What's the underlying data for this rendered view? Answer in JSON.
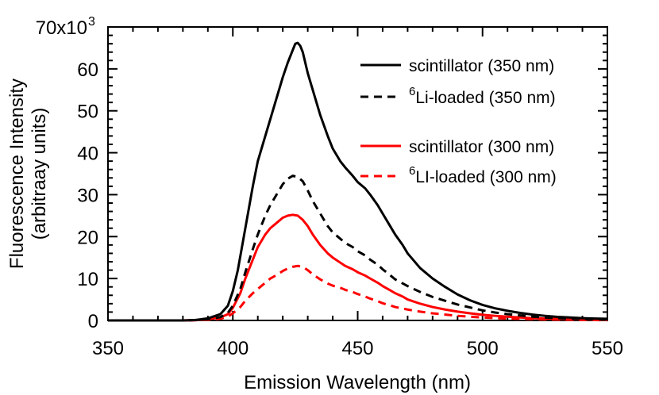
{
  "chart_data": {
    "type": "line",
    "title": "",
    "xlabel": "Emission Wavelength (nm)",
    "ylabel_line1": "Fluorescence Intensity",
    "ylabel_line2": "(arbitraay units)",
    "xlim": [
      350,
      550
    ],
    "ylim": [
      0,
      70000
    ],
    "x_ticks": [
      350,
      400,
      450,
      500,
      550
    ],
    "x_tick_labels": [
      "350",
      "400",
      "450",
      "500",
      "550"
    ],
    "y_ticks": [
      0,
      10000,
      20000,
      30000,
      40000,
      50000,
      60000,
      70000
    ],
    "y_tick_labels": [
      "0",
      "10",
      "20",
      "30",
      "40",
      "50",
      "60",
      "70x10"
    ],
    "y_tick_exponent": "3",
    "grid": false,
    "legend_position": "top-right",
    "series": [
      {
        "name": "scintillator (350 nm)",
        "color": "#000000",
        "dash": "solid",
        "points": [
          [
            350,
            0
          ],
          [
            360,
            0
          ],
          [
            370,
            0
          ],
          [
            380,
            0
          ],
          [
            385,
            100
          ],
          [
            390,
            500
          ],
          [
            395,
            1500
          ],
          [
            398,
            3500
          ],
          [
            400,
            7000
          ],
          [
            402,
            12000
          ],
          [
            405,
            22000
          ],
          [
            408,
            32000
          ],
          [
            410,
            38000
          ],
          [
            413,
            44000
          ],
          [
            415,
            48000
          ],
          [
            418,
            54000
          ],
          [
            420,
            58000
          ],
          [
            422,
            61500
          ],
          [
            424,
            64500
          ],
          [
            425,
            66000
          ],
          [
            426,
            66200
          ],
          [
            427,
            65500
          ],
          [
            428,
            64000
          ],
          [
            430,
            59000
          ],
          [
            432,
            55000
          ],
          [
            435,
            49000
          ],
          [
            438,
            44000
          ],
          [
            440,
            41000
          ],
          [
            443,
            38000
          ],
          [
            445,
            36500
          ],
          [
            448,
            34500
          ],
          [
            450,
            33000
          ],
          [
            453,
            31500
          ],
          [
            455,
            30000
          ],
          [
            458,
            27500
          ],
          [
            460,
            25500
          ],
          [
            463,
            22500
          ],
          [
            465,
            20500
          ],
          [
            468,
            18000
          ],
          [
            470,
            16000
          ],
          [
            475,
            12500
          ],
          [
            480,
            10000
          ],
          [
            485,
            8000
          ],
          [
            490,
            6200
          ],
          [
            495,
            4800
          ],
          [
            500,
            3700
          ],
          [
            505,
            2900
          ],
          [
            510,
            2300
          ],
          [
            515,
            1800
          ],
          [
            520,
            1400
          ],
          [
            525,
            1100
          ],
          [
            530,
            850
          ],
          [
            535,
            700
          ],
          [
            540,
            550
          ],
          [
            545,
            450
          ],
          [
            550,
            400
          ]
        ]
      },
      {
        "name": "6Li-loaded (350 nm)",
        "label_sup": "6",
        "label_rest": "Li-loaded (350 nm)",
        "color": "#000000",
        "dash": "dashed",
        "points": [
          [
            350,
            0
          ],
          [
            370,
            0
          ],
          [
            380,
            0
          ],
          [
            385,
            100
          ],
          [
            390,
            300
          ],
          [
            395,
            800
          ],
          [
            398,
            1800
          ],
          [
            400,
            3500
          ],
          [
            403,
            7500
          ],
          [
            405,
            11500
          ],
          [
            408,
            17000
          ],
          [
            410,
            20500
          ],
          [
            413,
            25000
          ],
          [
            415,
            27500
          ],
          [
            418,
            30500
          ],
          [
            420,
            32500
          ],
          [
            422,
            33800
          ],
          [
            424,
            34500
          ],
          [
            426,
            34200
          ],
          [
            428,
            33200
          ],
          [
            430,
            31000
          ],
          [
            432,
            28500
          ],
          [
            435,
            25500
          ],
          [
            438,
            22500
          ],
          [
            440,
            21000
          ],
          [
            443,
            19500
          ],
          [
            445,
            18500
          ],
          [
            448,
            17500
          ],
          [
            450,
            16500
          ],
          [
            453,
            15500
          ],
          [
            455,
            14500
          ],
          [
            458,
            13300
          ],
          [
            460,
            12200
          ],
          [
            463,
            10800
          ],
          [
            465,
            9800
          ],
          [
            470,
            8200
          ],
          [
            475,
            6800
          ],
          [
            480,
            5600
          ],
          [
            485,
            4700
          ],
          [
            490,
            3800
          ],
          [
            495,
            3100
          ],
          [
            500,
            2400
          ],
          [
            505,
            1900
          ],
          [
            510,
            1500
          ],
          [
            515,
            1200
          ],
          [
            520,
            900
          ],
          [
            525,
            700
          ],
          [
            530,
            550
          ],
          [
            535,
            450
          ],
          [
            540,
            350
          ],
          [
            545,
            300
          ],
          [
            550,
            250
          ]
        ]
      },
      {
        "name": "scintillator (300 nm)",
        "color": "#ff0000",
        "dash": "solid",
        "points": [
          [
            350,
            0
          ],
          [
            370,
            0
          ],
          [
            380,
            0
          ],
          [
            385,
            100
          ],
          [
            390,
            300
          ],
          [
            395,
            700
          ],
          [
            398,
            1500
          ],
          [
            400,
            3000
          ],
          [
            403,
            6500
          ],
          [
            405,
            10000
          ],
          [
            408,
            14500
          ],
          [
            410,
            17500
          ],
          [
            413,
            20500
          ],
          [
            415,
            22000
          ],
          [
            418,
            23500
          ],
          [
            420,
            24500
          ],
          [
            422,
            25000
          ],
          [
            424,
            25200
          ],
          [
            426,
            25000
          ],
          [
            428,
            24000
          ],
          [
            430,
            22500
          ],
          [
            432,
            20500
          ],
          [
            435,
            18000
          ],
          [
            438,
            16000
          ],
          [
            440,
            15000
          ],
          [
            443,
            13800
          ],
          [
            445,
            13000
          ],
          [
            448,
            12200
          ],
          [
            450,
            11500
          ],
          [
            453,
            10700
          ],
          [
            455,
            10000
          ],
          [
            458,
            9000
          ],
          [
            460,
            8200
          ],
          [
            463,
            7200
          ],
          [
            465,
            6500
          ],
          [
            468,
            5700
          ],
          [
            470,
            5000
          ],
          [
            475,
            4000
          ],
          [
            480,
            3200
          ],
          [
            485,
            2600
          ],
          [
            490,
            2100
          ],
          [
            495,
            1700
          ],
          [
            500,
            1350
          ],
          [
            505,
            1100
          ],
          [
            510,
            900
          ],
          [
            515,
            700
          ],
          [
            520,
            550
          ],
          [
            525,
            450
          ],
          [
            530,
            350
          ],
          [
            535,
            300
          ],
          [
            540,
            250
          ],
          [
            545,
            200
          ],
          [
            550,
            150
          ]
        ]
      },
      {
        "name": "6LI-loaded (300 nm)",
        "label_sup": "6",
        "label_rest": "LI-loaded (300 nm)",
        "color": "#ff0000",
        "dash": "dashed",
        "points": [
          [
            350,
            0
          ],
          [
            370,
            0
          ],
          [
            380,
            0
          ],
          [
            385,
            50
          ],
          [
            390,
            150
          ],
          [
            395,
            400
          ],
          [
            398,
            900
          ],
          [
            400,
            1700
          ],
          [
            403,
            3200
          ],
          [
            405,
            4700
          ],
          [
            408,
            6500
          ],
          [
            410,
            7500
          ],
          [
            413,
            9000
          ],
          [
            415,
            10000
          ],
          [
            418,
            11000
          ],
          [
            420,
            11800
          ],
          [
            422,
            12400
          ],
          [
            424,
            12800
          ],
          [
            426,
            13000
          ],
          [
            428,
            12800
          ],
          [
            430,
            12000
          ],
          [
            432,
            11000
          ],
          [
            435,
            9800
          ],
          [
            438,
            8800
          ],
          [
            440,
            8300
          ],
          [
            443,
            7800
          ],
          [
            445,
            7300
          ],
          [
            448,
            6800
          ],
          [
            450,
            6300
          ],
          [
            453,
            5700
          ],
          [
            455,
            5200
          ],
          [
            458,
            4600
          ],
          [
            460,
            4100
          ],
          [
            463,
            3600
          ],
          [
            465,
            3200
          ],
          [
            470,
            2600
          ],
          [
            475,
            2100
          ],
          [
            480,
            1700
          ],
          [
            485,
            1400
          ],
          [
            490,
            1100
          ],
          [
            495,
            900
          ],
          [
            500,
            700
          ],
          [
            505,
            550
          ],
          [
            510,
            450
          ],
          [
            515,
            350
          ],
          [
            520,
            280
          ],
          [
            525,
            220
          ],
          [
            530,
            180
          ],
          [
            535,
            140
          ],
          [
            540,
            110
          ],
          [
            545,
            90
          ],
          [
            550,
            70
          ]
        ]
      }
    ]
  }
}
